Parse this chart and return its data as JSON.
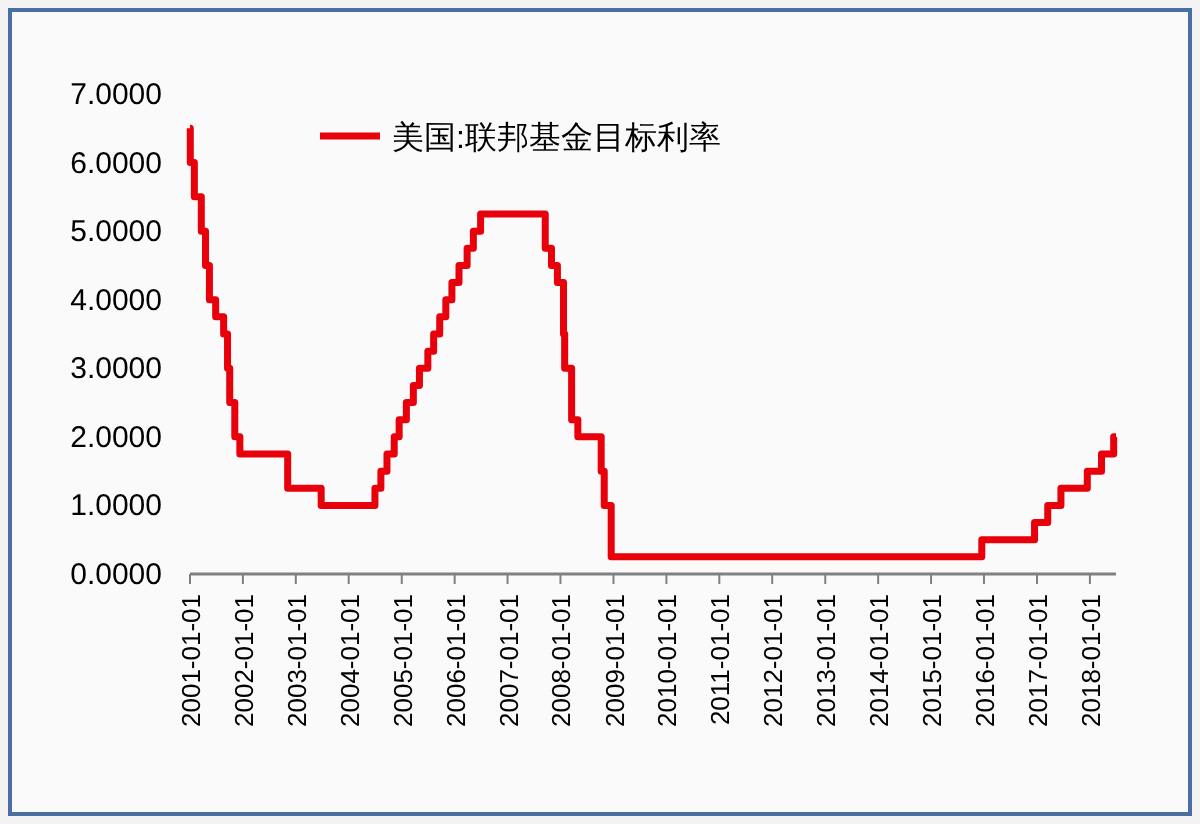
{
  "chart_data": {
    "type": "step",
    "x": [
      "2001-01-01",
      "2001-01-03",
      "2001-01-31",
      "2001-03-20",
      "2001-04-18",
      "2001-05-15",
      "2001-06-27",
      "2001-08-21",
      "2001-09-17",
      "2001-10-02",
      "2001-11-06",
      "2001-12-11",
      "2002-11-06",
      "2003-06-25",
      "2004-06-30",
      "2004-08-10",
      "2004-09-21",
      "2004-11-10",
      "2004-12-14",
      "2005-02-02",
      "2005-03-22",
      "2005-05-03",
      "2005-06-30",
      "2005-08-09",
      "2005-09-20",
      "2005-11-01",
      "2005-12-13",
      "2006-01-31",
      "2006-03-28",
      "2006-05-10",
      "2006-06-29",
      "2007-09-18",
      "2007-10-31",
      "2007-12-11",
      "2008-01-22",
      "2008-01-30",
      "2008-03-18",
      "2008-04-30",
      "2008-10-08",
      "2008-10-29",
      "2008-12-16",
      "2015-12-17",
      "2016-12-15",
      "2017-03-16",
      "2017-06-15",
      "2017-12-14",
      "2018-03-22",
      "2018-06-14",
      "2018-06-30"
    ],
    "series": [
      {
        "name": "美国:联邦基金目标利率",
        "color": "#e8000b",
        "values": [
          6.5,
          6.0,
          5.5,
          5.0,
          4.5,
          4.0,
          3.75,
          3.5,
          3.0,
          2.5,
          2.0,
          1.75,
          1.25,
          1.0,
          1.25,
          1.5,
          1.75,
          2.0,
          2.25,
          2.5,
          2.75,
          3.0,
          3.25,
          3.5,
          3.75,
          4.0,
          4.25,
          4.5,
          4.75,
          5.0,
          5.25,
          4.75,
          4.5,
          4.25,
          3.5,
          3.0,
          2.25,
          2.0,
          1.5,
          1.0,
          0.25,
          0.5,
          0.75,
          1.0,
          1.25,
          1.5,
          1.75,
          2.0,
          2.0
        ]
      }
    ],
    "xlim": [
      "2001-01-01",
      "2018-06-30"
    ],
    "xticks": [
      {
        "value": "2001-01-01",
        "label": "2001-01-01"
      },
      {
        "value": "2002-01-01",
        "label": "2002-01-01"
      },
      {
        "value": "2003-01-01",
        "label": "2003-01-01"
      },
      {
        "value": "2004-01-01",
        "label": "2004-01-01"
      },
      {
        "value": "2005-01-01",
        "label": "2005-01-01"
      },
      {
        "value": "2006-01-01",
        "label": "2006-01-01"
      },
      {
        "value": "2007-01-01",
        "label": "2007-01-01"
      },
      {
        "value": "2008-01-01",
        "label": "2008-01-01"
      },
      {
        "value": "2009-01-01",
        "label": "2009-01-01"
      },
      {
        "value": "2010-01-01",
        "label": "2010-01-01"
      },
      {
        "value": "2011-01-01",
        "label": "2011-01-01"
      },
      {
        "value": "2012-01-01",
        "label": "2012-01-01"
      },
      {
        "value": "2013-01-01",
        "label": "2013-01-01"
      },
      {
        "value": "2014-01-01",
        "label": "2014-01-01"
      },
      {
        "value": "2015-01-01",
        "label": "2015-01-01"
      },
      {
        "value": "2016-01-01",
        "label": "2016-01-01"
      },
      {
        "value": "2017-01-01",
        "label": "2017-01-01"
      },
      {
        "value": "2018-01-01",
        "label": "2018-01-01"
      }
    ],
    "ylim": [
      0,
      7
    ],
    "yticks": [
      {
        "value": 0,
        "label": "0.0000"
      },
      {
        "value": 1,
        "label": "1.0000"
      },
      {
        "value": 2,
        "label": "2.0000"
      },
      {
        "value": 3,
        "label": "3.0000"
      },
      {
        "value": 4,
        "label": "4.0000"
      },
      {
        "value": 5,
        "label": "5.0000"
      },
      {
        "value": 6,
        "label": "6.0000"
      },
      {
        "value": 7,
        "label": "7.0000"
      }
    ],
    "legend": "top",
    "grid": false,
    "marker": "none",
    "line_style": "solid"
  }
}
